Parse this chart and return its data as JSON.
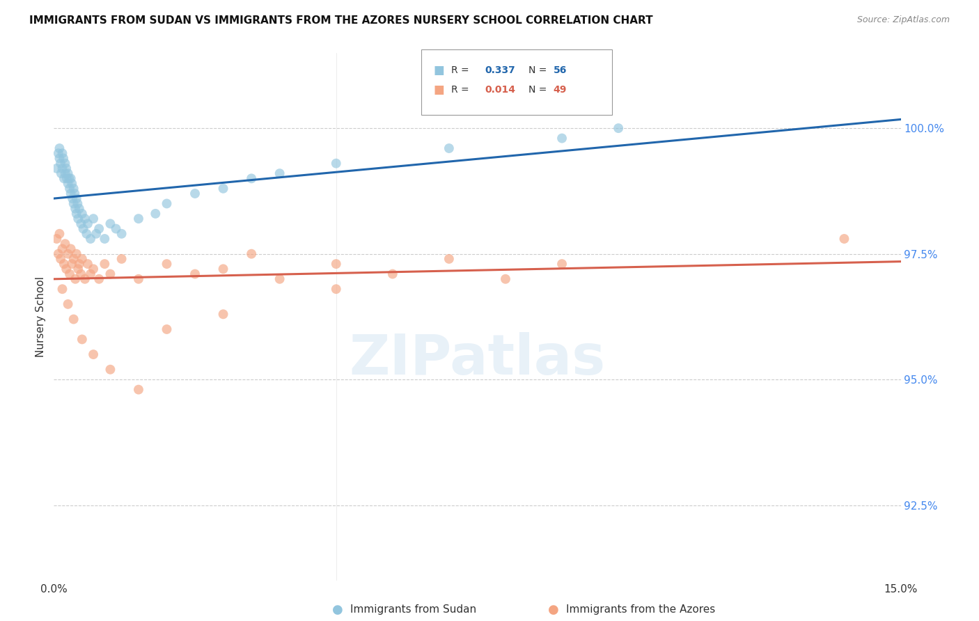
{
  "title": "IMMIGRANTS FROM SUDAN VS IMMIGRANTS FROM THE AZORES NURSERY SCHOOL CORRELATION CHART",
  "source": "Source: ZipAtlas.com",
  "ylabel": "Nursery School",
  "ytick_labels": [
    "92.5%",
    "95.0%",
    "97.5%",
    "100.0%"
  ],
  "ytick_values": [
    92.5,
    95.0,
    97.5,
    100.0
  ],
  "xlim": [
    0.0,
    15.0
  ],
  "ylim": [
    91.0,
    101.5
  ],
  "legend1_label": "Immigrants from Sudan",
  "legend2_label": "Immigrants from the Azores",
  "r1": "0.337",
  "n1": "56",
  "r2": "0.014",
  "n2": "49",
  "color_blue": "#92c5de",
  "color_pink": "#f4a582",
  "line_blue": "#2166ac",
  "line_pink": "#d6604d",
  "background": "#ffffff",
  "sudan_x": [
    0.05,
    0.08,
    0.1,
    0.1,
    0.12,
    0.13,
    0.15,
    0.15,
    0.17,
    0.18,
    0.2,
    0.2,
    0.22,
    0.23,
    0.25,
    0.25,
    0.27,
    0.28,
    0.3,
    0.3,
    0.32,
    0.33,
    0.35,
    0.35,
    0.37,
    0.38,
    0.4,
    0.4,
    0.42,
    0.43,
    0.45,
    0.48,
    0.5,
    0.52,
    0.55,
    0.58,
    0.6,
    0.65,
    0.7,
    0.75,
    0.8,
    0.9,
    1.0,
    1.1,
    1.2,
    1.5,
    1.8,
    2.0,
    2.5,
    3.0,
    3.5,
    4.0,
    5.0,
    7.0,
    9.0,
    10.0
  ],
  "sudan_y": [
    99.2,
    99.5,
    99.6,
    99.4,
    99.3,
    99.1,
    99.5,
    99.2,
    99.4,
    99.0,
    99.3,
    99.1,
    99.2,
    99.0,
    98.9,
    99.1,
    99.0,
    98.8,
    98.7,
    99.0,
    98.9,
    98.6,
    98.8,
    98.5,
    98.7,
    98.4,
    98.6,
    98.3,
    98.5,
    98.2,
    98.4,
    98.1,
    98.3,
    98.0,
    98.2,
    97.9,
    98.1,
    97.8,
    98.2,
    97.9,
    98.0,
    97.8,
    98.1,
    98.0,
    97.9,
    98.2,
    98.3,
    98.5,
    98.7,
    98.8,
    99.0,
    99.1,
    99.3,
    99.6,
    99.8,
    100.0
  ],
  "azores_x": [
    0.05,
    0.08,
    0.1,
    0.12,
    0.15,
    0.18,
    0.2,
    0.22,
    0.25,
    0.28,
    0.3,
    0.32,
    0.35,
    0.38,
    0.4,
    0.43,
    0.45,
    0.48,
    0.5,
    0.55,
    0.6,
    0.65,
    0.7,
    0.8,
    0.9,
    1.0,
    1.2,
    1.5,
    2.0,
    2.5,
    3.0,
    3.5,
    4.0,
    5.0,
    6.0,
    7.0,
    8.0,
    9.0,
    0.15,
    0.25,
    0.35,
    0.5,
    0.7,
    1.0,
    1.5,
    2.0,
    3.0,
    5.0,
    14.0
  ],
  "azores_y": [
    97.8,
    97.5,
    97.9,
    97.4,
    97.6,
    97.3,
    97.7,
    97.2,
    97.5,
    97.1,
    97.6,
    97.3,
    97.4,
    97.0,
    97.5,
    97.2,
    97.3,
    97.1,
    97.4,
    97.0,
    97.3,
    97.1,
    97.2,
    97.0,
    97.3,
    97.1,
    97.4,
    97.0,
    97.3,
    97.1,
    97.2,
    97.5,
    97.0,
    97.3,
    97.1,
    97.4,
    97.0,
    97.3,
    96.8,
    96.5,
    96.2,
    95.8,
    95.5,
    95.2,
    94.8,
    96.0,
    96.3,
    96.8,
    97.8
  ]
}
